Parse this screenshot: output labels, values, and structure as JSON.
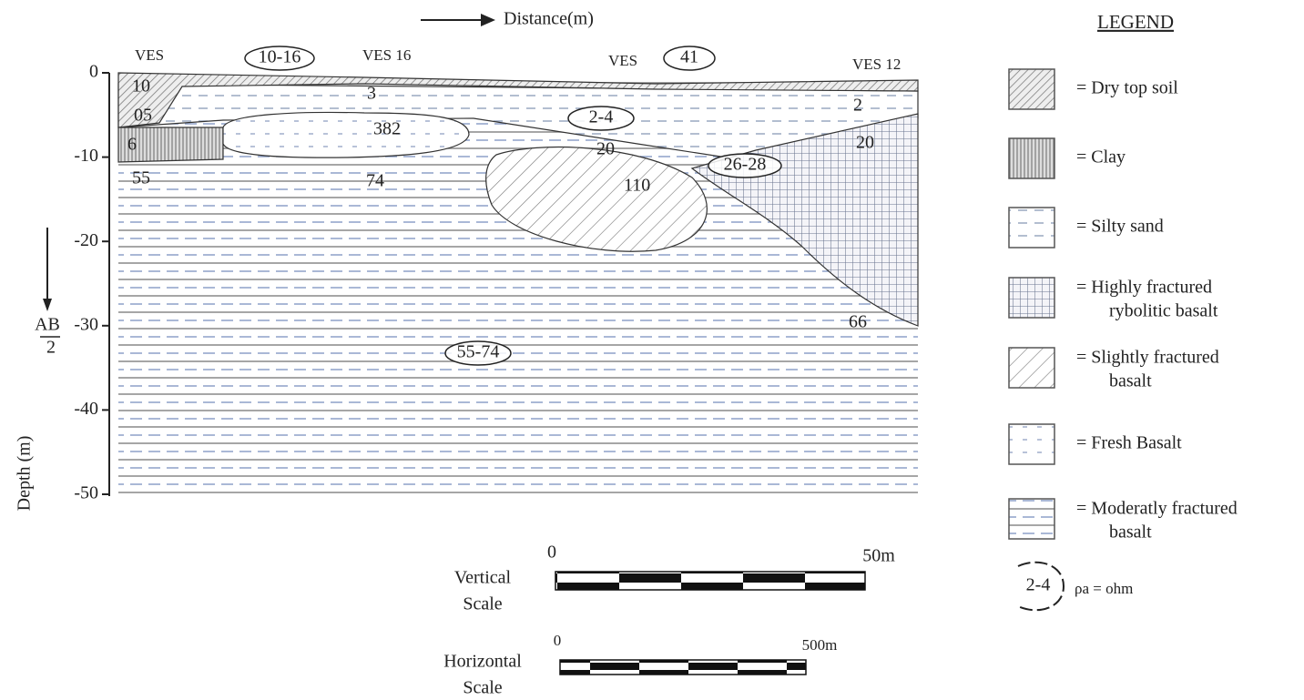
{
  "header": {
    "direction_label": "Distance(m)"
  },
  "depth_axis": {
    "title": "Depth (m)",
    "ticks": [
      "0",
      "-10",
      "-20",
      "-30",
      "-40",
      "-50"
    ],
    "side_label": {
      "top": "AB",
      "bottom": "2"
    }
  },
  "section": {
    "stations": [
      "VES",
      "VES 16",
      "VES",
      "VES 12"
    ],
    "values": [
      "10",
      "05",
      "6",
      "55",
      "3",
      "382",
      "74",
      "20",
      "110",
      "20",
      "2",
      "66"
    ],
    "ranges": [
      "10-16",
      "41",
      "2-4",
      "26-28",
      "55-74"
    ]
  },
  "legend": {
    "title": "LEGEND",
    "items": [
      {
        "lines": [
          "= Dry top soil"
        ]
      },
      {
        "lines": [
          "= Clay"
        ]
      },
      {
        "lines": [
          "= Silty sand"
        ]
      },
      {
        "lines": [
          "= Highly fractured",
          "rybolitic basalt"
        ]
      },
      {
        "lines": [
          "= Slightly fractured",
          "basalt"
        ]
      },
      {
        "lines": [
          "= Fresh Basalt"
        ]
      },
      {
        "lines": [
          "= Moderatly fractured",
          "basalt"
        ]
      }
    ],
    "resistivity_key": {
      "range": "2-4",
      "label": "ρa = ohm"
    }
  },
  "scales": {
    "vertical": {
      "title": [
        "Vertical",
        "Scale"
      ],
      "start": "0",
      "end": "50m"
    },
    "horizontal": {
      "title": [
        "Horizontal",
        "Scale"
      ],
      "start": "0",
      "end": "500m"
    }
  }
}
